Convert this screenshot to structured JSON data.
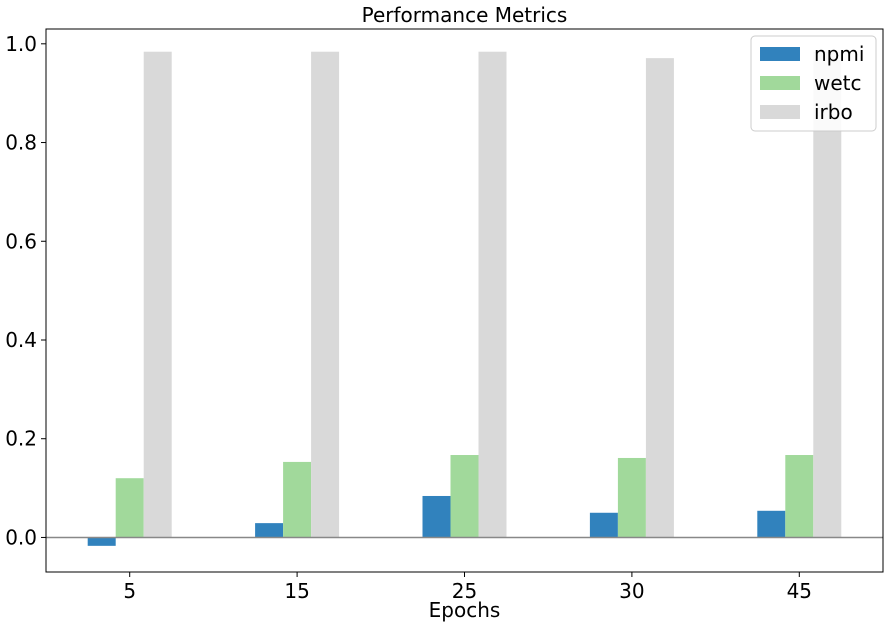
{
  "chart_data": {
    "type": "bar",
    "title": "Performance Metrics",
    "xlabel": "Epochs",
    "ylabel": "",
    "categories": [
      "5",
      "15",
      "25",
      "30",
      "45"
    ],
    "ylim": [
      -0.07,
      1.03
    ],
    "yticks": [
      0.0,
      0.2,
      0.4,
      0.6,
      0.8,
      1.0
    ],
    "ytick_labels": [
      "0.0",
      "0.2",
      "0.4",
      "0.6",
      "0.8",
      "1.0"
    ],
    "grid": false,
    "zero_line": true,
    "legend_position": "top-right",
    "series": [
      {
        "name": "npmi",
        "color": "#3182bd",
        "values": [
          -0.017,
          0.029,
          0.084,
          0.05,
          0.054
        ]
      },
      {
        "name": "wetc",
        "color": "#a1d99b",
        "values": [
          0.12,
          0.153,
          0.167,
          0.161,
          0.167
        ]
      },
      {
        "name": "irbo",
        "color": "#d9d9d9",
        "values": [
          0.984,
          0.984,
          0.984,
          0.971,
          0.984
        ]
      }
    ]
  }
}
